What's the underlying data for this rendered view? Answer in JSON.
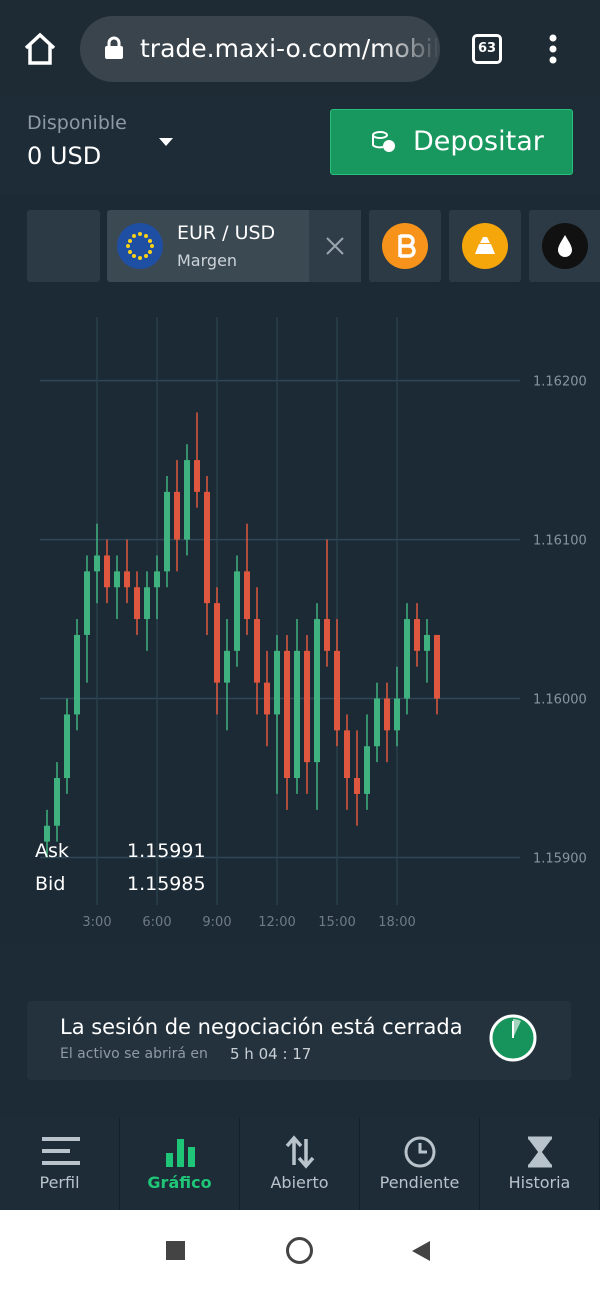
{
  "browser": {
    "url": "trade.maxi-o.com/mobile",
    "tab_count": "63"
  },
  "account": {
    "label": "Disponible",
    "balance": "0 USD",
    "deposit_button": "Depositar"
  },
  "asset_tabs": {
    "active": {
      "name": "EUR / USD",
      "mode": "Margen"
    }
  },
  "chart_data": {
    "type": "candlestick",
    "x": [
      0.5,
      1,
      1.5,
      2,
      2.5,
      3,
      3.5,
      4,
      4.5,
      5,
      5.5,
      6,
      6.5,
      7,
      7.5,
      8,
      8.5,
      9,
      9.5,
      10,
      10.5,
      11,
      11.5,
      12,
      12.5,
      13,
      13.5,
      14,
      14.5,
      15,
      15.5,
      16,
      16.5,
      17,
      17.5,
      18,
      18.5,
      19,
      19.5,
      20
    ],
    "open": [
      1.1591,
      1.1592,
      1.1595,
      1.1599,
      1.1604,
      1.1608,
      1.1609,
      1.1607,
      1.1608,
      1.1607,
      1.1605,
      1.1607,
      1.1608,
      1.1613,
      1.161,
      1.1615,
      1.1613,
      1.1606,
      1.1601,
      1.1603,
      1.1608,
      1.1605,
      1.1601,
      1.1599,
      1.1603,
      1.1595,
      1.1603,
      1.1596,
      1.1605,
      1.1603,
      1.1598,
      1.1595,
      1.1594,
      1.1597,
      1.16,
      1.1598,
      1.16,
      1.1605,
      1.1603,
      1.1604
    ],
    "high": [
      1.1593,
      1.1596,
      1.16,
      1.1605,
      1.1609,
      1.1611,
      1.161,
      1.1609,
      1.161,
      1.1608,
      1.1608,
      1.1609,
      1.1614,
      1.1615,
      1.1616,
      1.1618,
      1.1614,
      1.1607,
      1.1605,
      1.1609,
      1.1611,
      1.1607,
      1.1603,
      1.1604,
      1.1604,
      1.1605,
      1.1604,
      1.1606,
      1.161,
      1.1605,
      1.1599,
      1.1598,
      1.1599,
      1.1601,
      1.1601,
      1.1602,
      1.1606,
      1.1606,
      1.1605,
      1.1604
    ],
    "low": [
      1.159,
      1.1591,
      1.1594,
      1.1598,
      1.1601,
      1.1606,
      1.1606,
      1.1605,
      1.1606,
      1.1604,
      1.1603,
      1.1605,
      1.1607,
      1.1608,
      1.1609,
      1.1612,
      1.1604,
      1.1599,
      1.1598,
      1.1602,
      1.1604,
      1.1599,
      1.1597,
      1.1594,
      1.1593,
      1.1594,
      1.1594,
      1.1593,
      1.1602,
      1.1597,
      1.1593,
      1.1592,
      1.1593,
      1.1596,
      1.1596,
      1.1597,
      1.1599,
      1.1602,
      1.1601,
      1.1599
    ],
    "close": [
      1.1592,
      1.1595,
      1.1599,
      1.1604,
      1.1608,
      1.1609,
      1.1607,
      1.1608,
      1.1607,
      1.1605,
      1.1607,
      1.1608,
      1.1613,
      1.161,
      1.1615,
      1.1613,
      1.1606,
      1.1601,
      1.1603,
      1.1608,
      1.1605,
      1.1601,
      1.1599,
      1.1603,
      1.1595,
      1.1603,
      1.1596,
      1.1605,
      1.1603,
      1.1598,
      1.1595,
      1.1594,
      1.1597,
      1.16,
      1.1598,
      1.16,
      1.1605,
      1.1603,
      1.1604,
      1.16
    ],
    "up_color": "#3fb27f",
    "down_color": "#e0573f",
    "xlim": [
      0,
      24
    ],
    "xticks": [
      {
        "value": 3,
        "label": "3:00"
      },
      {
        "value": 6,
        "label": "6:00"
      },
      {
        "value": 9,
        "label": "9:00"
      },
      {
        "value": 12,
        "label": "12:00"
      },
      {
        "value": 15,
        "label": "15:00"
      },
      {
        "value": 18,
        "label": "18:00"
      }
    ],
    "ylim": [
      1.1585,
      1.1624
    ],
    "yticks": [
      {
        "value": 1.159,
        "label": "1.15900"
      },
      {
        "value": 1.16,
        "label": "1.16000"
      },
      {
        "value": 1.161,
        "label": "1.16100"
      },
      {
        "value": 1.162,
        "label": "1.16200"
      }
    ],
    "grid": true
  },
  "quote": {
    "ask_label": "Ask",
    "ask": "1.15991",
    "bid_label": "Bid",
    "bid": "1.15985"
  },
  "session": {
    "message": "La sesión de negociación está cerrada",
    "opens_in_label": "El activo se abrirá en",
    "countdown": "5 h 04 : 17"
  },
  "nav": {
    "items": [
      "Perfil",
      "Gráfico",
      "Abierto",
      "Pendiente",
      "Historia"
    ],
    "active": 1
  }
}
